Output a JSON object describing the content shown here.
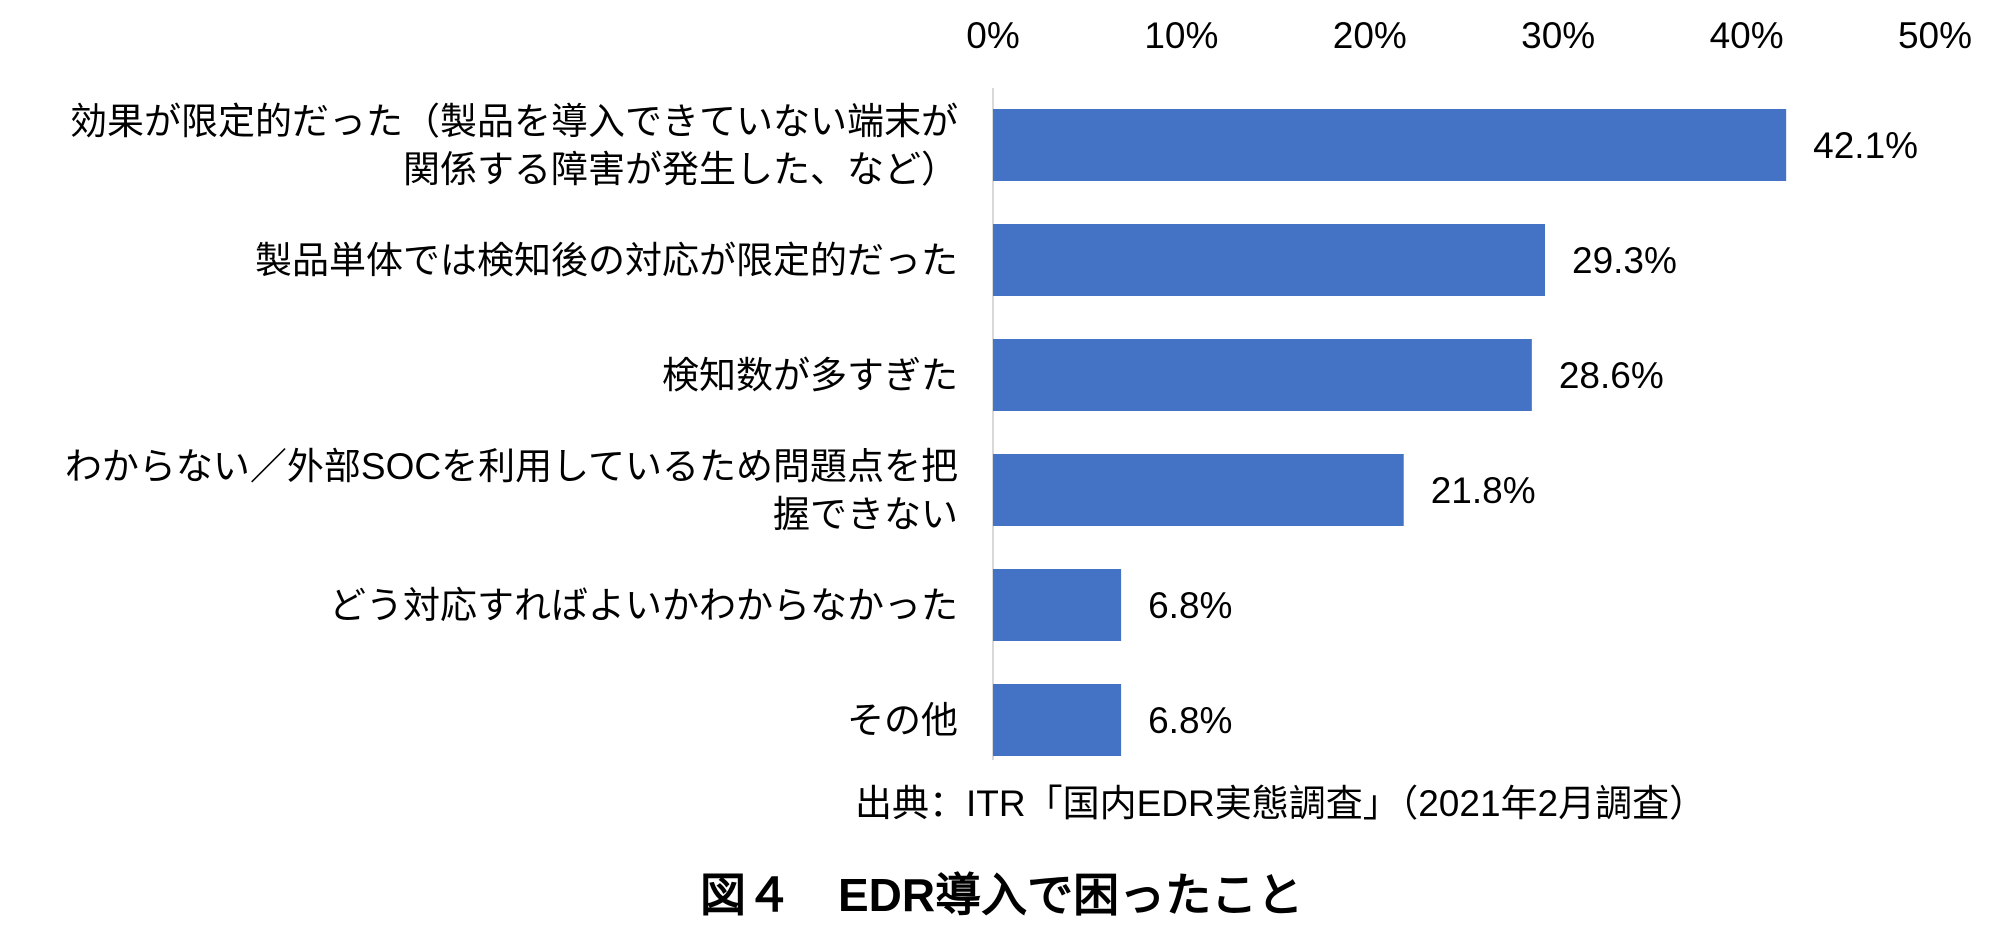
{
  "chart_data": {
    "type": "bar",
    "orientation": "horizontal",
    "categories": [
      "効果が限定的だった（製品を導入できていない端末が関係する障害が発生した、など）",
      "製品単体では検知後の対応が限定的だった",
      "検知数が多すぎた",
      "わからない／外部SOCを利用しているため問題点を把握できない",
      "どう対応すればよいかわからなかった",
      "その他"
    ],
    "category_lines": [
      [
        "効果が限定的だった（製品を導入できていない端末が",
        "関係する障害が発生した、など）"
      ],
      [
        "製品単体では検知後の対応が限定的だった"
      ],
      [
        "検知数が多すぎた"
      ],
      [
        "わからない／外部SOCを利用しているため問題点を把",
        "握できない"
      ],
      [
        "どう対応すればよいかわからなかった"
      ],
      [
        "その他"
      ]
    ],
    "values": [
      42.1,
      29.3,
      28.6,
      21.8,
      6.8,
      6.8
    ],
    "value_labels": [
      "42.1%",
      "29.3%",
      "28.6%",
      "21.8%",
      "6.8%",
      "6.8%"
    ],
    "xlim": [
      0,
      50
    ],
    "ticks": [
      0,
      10,
      20,
      30,
      40,
      50
    ],
    "tick_labels": [
      "0%",
      "10%",
      "20%",
      "30%",
      "40%",
      "50%"
    ],
    "axis_position": "top",
    "grid": false,
    "bar_color": "#4472C4"
  },
  "source": "出典：ITR「国内EDR実態調査」（2021年2月調査）",
  "caption": "図４　EDR導入で困ったこと"
}
